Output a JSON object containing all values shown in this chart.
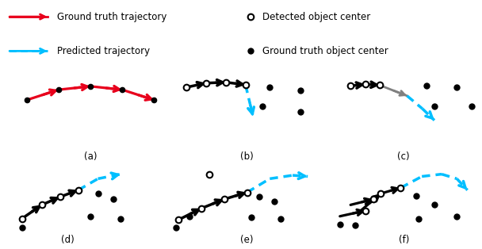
{
  "legend": {
    "gt_traj_label": "Ground truth trajectory",
    "pred_traj_label": "Predicted trajectory",
    "det_center_label": "Detected object center",
    "gt_center_label": "Ground truth object center",
    "gt_color": "#e8001c",
    "pred_color": "#00bfff"
  },
  "subfig_labels": [
    "(a)",
    "(b)",
    "(c)",
    "(d)",
    "(e)",
    "(f)"
  ],
  "background_color": "#ffffff",
  "fontsize": 8.5
}
